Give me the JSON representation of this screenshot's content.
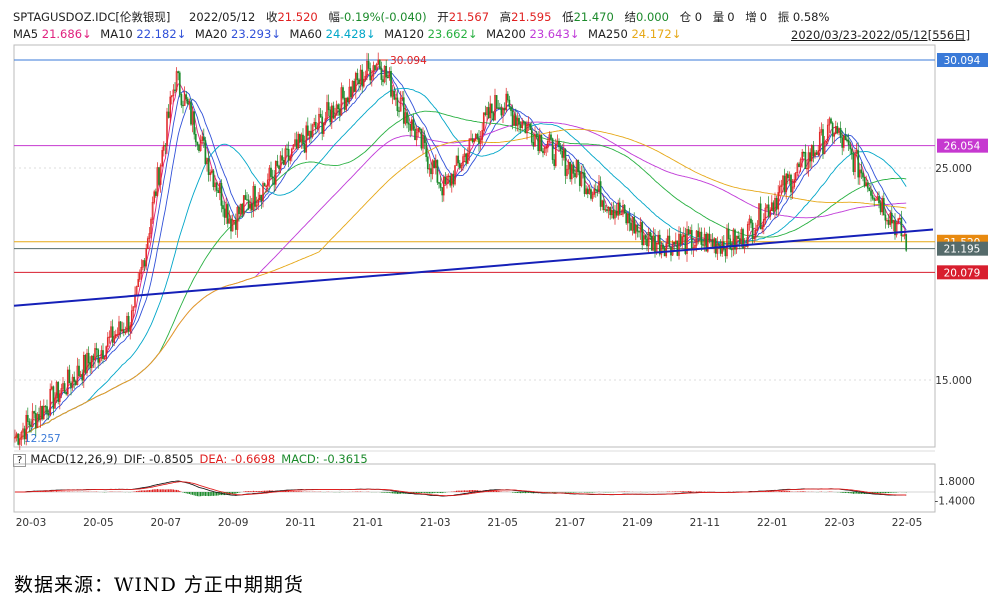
{
  "header": {
    "symbol": "SPTAGUSDOZ.IDC[伦敦银现]",
    "date": "2022/05/12",
    "close_label": "收",
    "close": "21.520",
    "change_label": "幅",
    "change": "-0.19%(-0.040)",
    "open_label": "开",
    "open": "21.567",
    "high_label": "高",
    "high": "21.595",
    "low_label": "低",
    "low": "21.470",
    "settle_label": "结",
    "settle": "0.000",
    "oi_label": "仓",
    "oi": "0",
    "vol_label": "量",
    "vol": "0",
    "inc_label": "增",
    "inc": "0",
    "amp_label": "振",
    "amp": "0.58%"
  },
  "ma_legend": [
    {
      "label": "MA5",
      "value": "21.686↓",
      "color": "#e0207d"
    },
    {
      "label": "MA10",
      "value": "22.182↓",
      "color": "#3050d8"
    },
    {
      "label": "MA20",
      "value": "23.293↓",
      "color": "#3050d8"
    },
    {
      "label": "MA60",
      "value": "24.428↓",
      "color": "#00a6c8"
    },
    {
      "label": "MA120",
      "value": "23.662↓",
      "color": "#27b040"
    },
    {
      "label": "MA200",
      "value": "23.643↓",
      "color": "#c03ad8"
    },
    {
      "label": "MA250",
      "value": "24.172↓",
      "color": "#e6a817"
    }
  ],
  "date_range": "2020/03/23-2022/05/12[556日]",
  "macd_legend": {
    "help": "?",
    "label": "MACD(12,26,9)",
    "dif": "DIF: -0.8505",
    "dea": "DEA: -0.6698",
    "macd": "MACD: -0.3615"
  },
  "source": "数据来源：WIND 方正中期期货",
  "colors": {
    "up": "#e02020",
    "down": "#1b8a2b",
    "trend": "#1520b8",
    "h_blue": "#3a7ad8",
    "h_magenta": "#c638d0",
    "h_orange": "#e6a817",
    "h_gray": "#556b6b",
    "h_red": "#d81e2e"
  },
  "chart_data": {
    "type": "candlestick",
    "y_ticks": [
      "25.000",
      "15.000"
    ],
    "macd_y_ticks": [
      "1.8000",
      "-1.4000"
    ],
    "x_ticks": [
      "20-03",
      "20-05",
      "20-07",
      "20-09",
      "20-11",
      "21-01",
      "21-03",
      "21-05",
      "21-07",
      "21-09",
      "21-11",
      "22-01",
      "22-03",
      "22-05"
    ],
    "price_labels": {
      "high": "30.094",
      "low": "12.257",
      "magenta": "26.054",
      "close": "21.520",
      "gray": "21.195",
      "red": "20.079"
    },
    "key_points": [
      {
        "date": "2020-03-18",
        "value": 12.257,
        "note": "low"
      },
      {
        "date": "2020-07-01",
        "value": 18.0
      },
      {
        "date": "2020-08-07",
        "value": 29.3
      },
      {
        "date": "2020-09-25",
        "value": 22.5
      },
      {
        "date": "2021-02-01",
        "value": 30.094,
        "note": "high"
      },
      {
        "date": "2021-03-31",
        "value": 24.0
      },
      {
        "date": "2021-05-18",
        "value": 28.2
      },
      {
        "date": "2021-09-29",
        "value": 21.5
      },
      {
        "date": "2021-12-15",
        "value": 21.5
      },
      {
        "date": "2022-03-08",
        "value": 26.9
      },
      {
        "date": "2022-05-12",
        "value": 21.52,
        "note": "close"
      }
    ],
    "horizontal_levels": [
      30.094,
      26.054,
      21.52,
      21.195,
      20.079
    ],
    "trend_line": [
      {
        "date": "2020-03-23",
        "value": 18.5
      },
      {
        "date": "2022-05-12",
        "value": 22.1
      }
    ],
    "macd": {
      "dif": -0.8505,
      "dea": -0.6698,
      "macd": -0.3615
    }
  }
}
